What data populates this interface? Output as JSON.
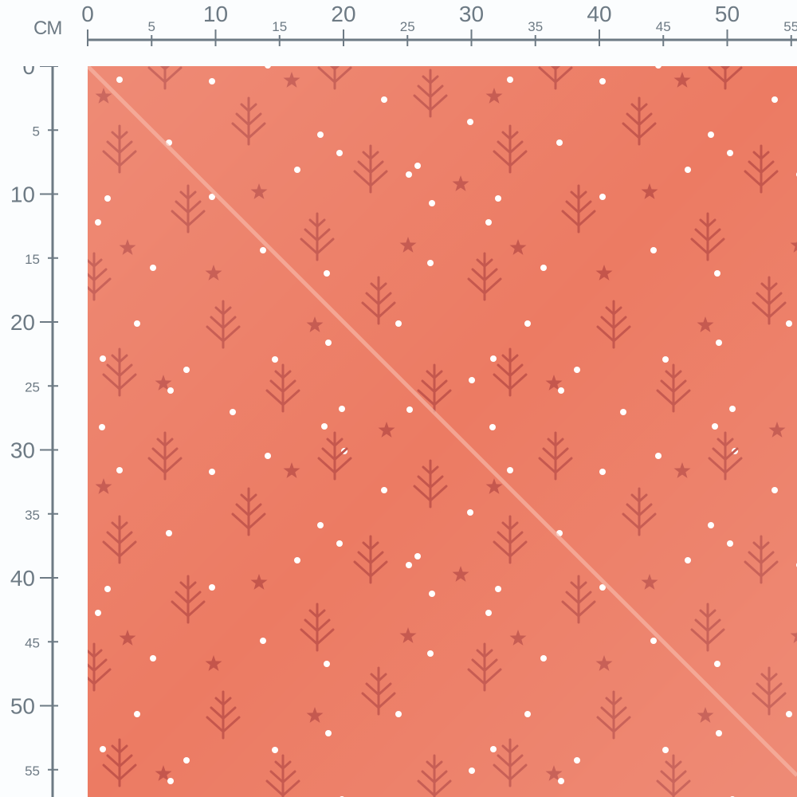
{
  "ruler": {
    "unit": "CM",
    "top_labels": [
      "0",
      "5",
      "10",
      "15",
      "20",
      "25",
      "30",
      "35",
      "40",
      "45",
      "50",
      "55"
    ],
    "left_labels": [
      "0",
      "5",
      "10",
      "15",
      "20",
      "25",
      "30",
      "35",
      "40",
      "45",
      "50",
      "55"
    ]
  },
  "fabric": {
    "background_color": "#ec7b63",
    "motif_color": "#c4554b",
    "dot_color": "#ffffff",
    "motifs": [
      "tree-icon",
      "star-icon",
      "dot"
    ]
  }
}
